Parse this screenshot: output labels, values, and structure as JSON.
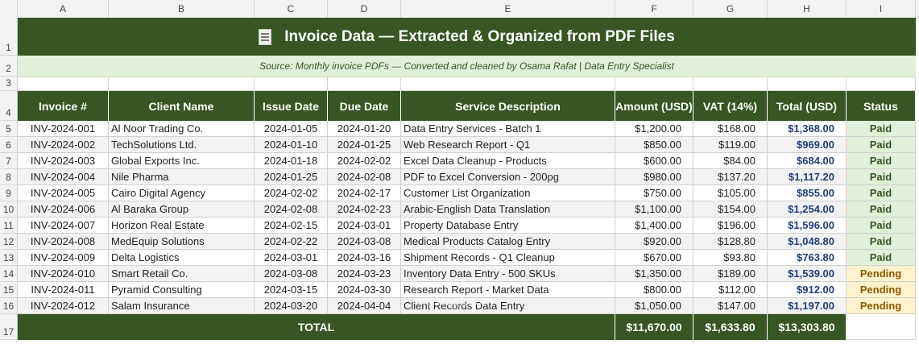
{
  "column_letters": [
    "A",
    "B",
    "C",
    "D",
    "E",
    "F",
    "G",
    "H",
    "I"
  ],
  "row_numbers": [
    "1",
    "2",
    "3",
    "4",
    "5",
    "6",
    "7",
    "8",
    "9",
    "10",
    "11",
    "12",
    "13",
    "14",
    "15",
    "16",
    "17"
  ],
  "title": "Invoice Data — Extracted & Organized from PDF Files",
  "subtitle": "Source: Monthly invoice PDFs — Converted and cleaned by Osama Rafat  |  Data Entry Specialist",
  "headers": [
    "Invoice #",
    "Client Name",
    "Issue Date",
    "Due Date",
    "Service Description",
    "Amount (USD)",
    "VAT (14%)",
    "Total (USD)",
    "Status"
  ],
  "rows": [
    [
      "INV-2024-001",
      "Al Noor Trading Co.",
      "2024-01-05",
      "2024-01-20",
      "Data Entry Services - Batch 1",
      "$1,200.00",
      "$168.00",
      "$1,368.00",
      "Paid"
    ],
    [
      "INV-2024-002",
      "TechSolutions Ltd.",
      "2024-01-10",
      "2024-01-25",
      "Web Research Report - Q1",
      "$850.00",
      "$119.00",
      "$969.00",
      "Paid"
    ],
    [
      "INV-2024-003",
      "Global Exports Inc.",
      "2024-01-18",
      "2024-02-02",
      "Excel Data Cleanup - Products",
      "$600.00",
      "$84.00",
      "$684.00",
      "Paid"
    ],
    [
      "INV-2024-004",
      "Nile Pharma",
      "2024-01-25",
      "2024-02-08",
      "PDF to Excel Conversion - 200pg",
      "$980.00",
      "$137.20",
      "$1,117.20",
      "Paid"
    ],
    [
      "INV-2024-005",
      "Cairo Digital Agency",
      "2024-02-02",
      "2024-02-17",
      "Customer List Organization",
      "$750.00",
      "$105.00",
      "$855.00",
      "Paid"
    ],
    [
      "INV-2024-006",
      "Al Baraka Group",
      "2024-02-08",
      "2024-02-23",
      "Arabic-English Data Translation",
      "$1,100.00",
      "$154.00",
      "$1,254.00",
      "Paid"
    ],
    [
      "INV-2024-007",
      "Horizon Real Estate",
      "2024-02-15",
      "2024-03-01",
      "Property Database Entry",
      "$1,400.00",
      "$196.00",
      "$1,596.00",
      "Paid"
    ],
    [
      "INV-2024-008",
      "MedEquip Solutions",
      "2024-02-22",
      "2024-03-08",
      "Medical Products Catalog Entry",
      "$920.00",
      "$128.80",
      "$1,048.80",
      "Paid"
    ],
    [
      "INV-2024-009",
      "Delta Logistics",
      "2024-03-01",
      "2024-03-16",
      "Shipment Records - Q1 Cleanup",
      "$670.00",
      "$93.80",
      "$763.80",
      "Paid"
    ],
    [
      "INV-2024-010",
      "Smart Retail Co.",
      "2024-03-08",
      "2024-03-23",
      "Inventory Data Entry - 500 SKUs",
      "$1,350.00",
      "$189.00",
      "$1,539.00",
      "Pending"
    ],
    [
      "INV-2024-011",
      "Pyramid Consulting",
      "2024-03-15",
      "2024-03-30",
      "Research Report - Market Data",
      "$800.00",
      "$112.00",
      "$912.00",
      "Pending"
    ],
    [
      "INV-2024-012",
      "Salam Insurance",
      "2024-03-20",
      "2024-04-04",
      "Client Records Data Entry",
      "$1,050.00",
      "$147.00",
      "$1,197.00",
      "Pending"
    ]
  ],
  "totals": {
    "label": "TOTAL",
    "amount": "$11,670.00",
    "vat": "$1,633.80",
    "total": "$13,303.80"
  },
  "watermark": "mostaql.com",
  "colors": {
    "header_green": "#375623",
    "light_green": "#e2efda",
    "pending": "#fff2cc",
    "total_blue": "#1f3e7a"
  },
  "icons": {
    "title_icon": "document-icon"
  }
}
